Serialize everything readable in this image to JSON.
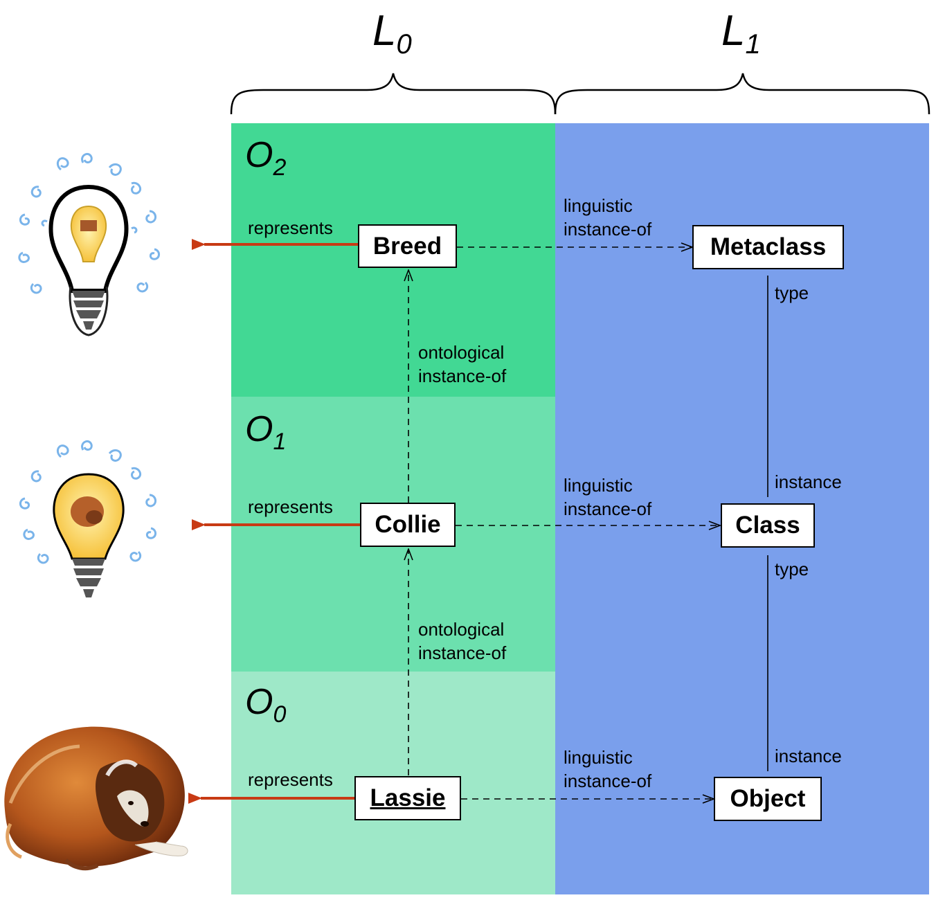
{
  "levels": {
    "l0": {
      "letter": "L",
      "sub": "0"
    },
    "l1": {
      "letter": "L",
      "sub": "1"
    }
  },
  "regions": {
    "o2": {
      "letter": "O",
      "sub": "2"
    },
    "o1": {
      "letter": "O",
      "sub": "1"
    },
    "o0": {
      "letter": "O",
      "sub": "0"
    }
  },
  "colors": {
    "o2": "#42d894",
    "o1": "#6ce0ae",
    "o0": "#9ee8c8",
    "l1": "#7a9fec",
    "represents_arrow": "#c83a14"
  },
  "nodes": {
    "breed": "Breed",
    "collie": "Collie",
    "lassie": "Lassie",
    "metaclass": "Metaclass",
    "class": "Class",
    "object": "Object"
  },
  "labels": {
    "represents": "represents",
    "linguistic_1": "linguistic",
    "linguistic_2": "instance-of",
    "ontological_1": "ontological",
    "ontological_2": "instance-of",
    "type": "type",
    "instance": "instance"
  },
  "icons": {
    "idea_o2": "lightbulb-idea-icon",
    "idea_o1": "lightbulb-idea-icon",
    "real_dog": "collie-dog-image"
  }
}
